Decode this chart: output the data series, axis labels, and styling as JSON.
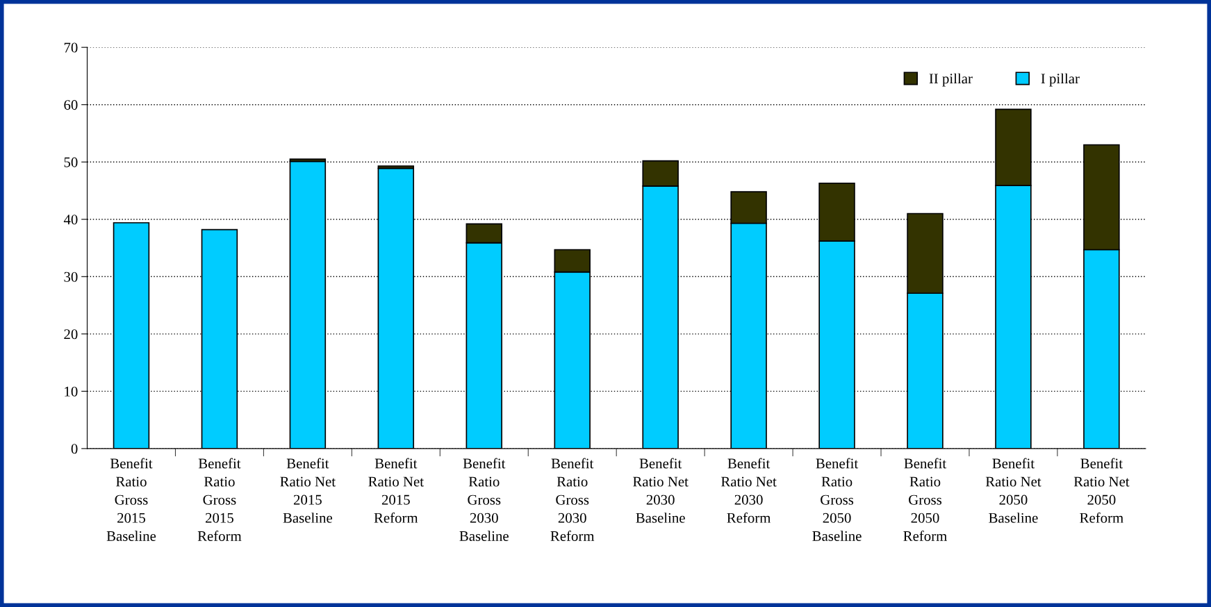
{
  "chart_data": {
    "type": "bar",
    "stacked": true,
    "categories": [
      "Benefit Ratio Gross 2015 Baseline",
      "Benefit Ratio Gross 2015 Reform",
      "Benefit Ratio Net 2015 Baseline",
      "Benefit Ratio Net 2015 Reform",
      "Benefit Ratio Gross 2030 Baseline",
      "Benefit Ratio Gross 2030 Reform",
      "Benefit Ratio Net 2030 Baseline",
      "Benefit Ratio Net 2030 Reform",
      "Benefit Ratio Gross 2050 Baseline",
      "Benefit Ratio Gross 2050 Reform",
      "Benefit Ratio Net 2050 Baseline",
      "Benefit Ratio Net 2050 Reform"
    ],
    "series": [
      {
        "name": "I pillar",
        "color": "#00ccff",
        "values": [
          39.4,
          38.2,
          50.1,
          48.9,
          35.9,
          30.8,
          45.8,
          39.3,
          36.2,
          27.1,
          45.9,
          34.7
        ]
      },
      {
        "name": "II pillar",
        "color": "#333300",
        "values": [
          null,
          null,
          0.4,
          0.4,
          3.3,
          3.9,
          4.4,
          5.5,
          10.1,
          13.9,
          13.3,
          18.3
        ]
      }
    ],
    "ylim": [
      0,
      70
    ],
    "yticks": [
      0,
      10,
      20,
      30,
      40,
      50,
      60,
      70
    ],
    "grid": "y",
    "legend": "top right"
  }
}
